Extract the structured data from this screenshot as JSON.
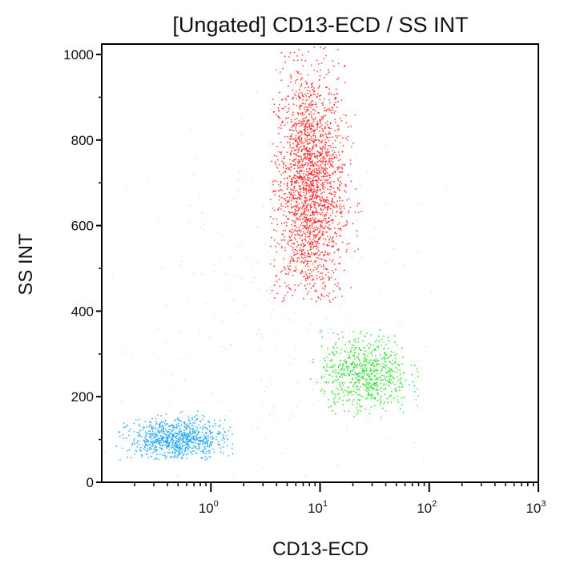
{
  "chart_data": {
    "type": "scatter",
    "title": "[Ungated] CD13-ECD / SS INT",
    "xlabel": "CD13-ECD",
    "ylabel": "SS INT",
    "x_scale": "log",
    "xlim": [
      0.1,
      1000
    ],
    "ylim": [
      0,
      1020
    ],
    "x_ticks": [
      {
        "value": 1,
        "base": "10",
        "exp": "0"
      },
      {
        "value": 10,
        "base": "10",
        "exp": "1"
      },
      {
        "value": 100,
        "base": "10",
        "exp": "2"
      },
      {
        "value": 1000,
        "base": "10",
        "exp": "3"
      }
    ],
    "y_ticks": [
      {
        "value": 0,
        "label": "0"
      },
      {
        "value": 200,
        "label": "200"
      },
      {
        "value": 400,
        "label": "400"
      },
      {
        "value": 600,
        "label": "600"
      },
      {
        "value": 800,
        "label": "800"
      },
      {
        "value": 1000,
        "label": "1000"
      }
    ],
    "grid": false,
    "populations": [
      {
        "color": "#ff1f1f",
        "count": 2200,
        "x_geo_center": 8,
        "x_log_sd": 0.16,
        "x_range": [
          3.5,
          25
        ],
        "y_center": 690,
        "y_sd": 140,
        "y_range": [
          420,
          1020
        ]
      },
      {
        "color": "#22dd22",
        "count": 700,
        "x_geo_center": 26,
        "x_log_sd": 0.2,
        "x_range": [
          8,
          80
        ],
        "y_center": 255,
        "y_sd": 45,
        "y_range": [
          150,
          360
        ]
      },
      {
        "color": "#1ba6ef",
        "count": 900,
        "x_geo_center": 0.5,
        "x_log_sd": 0.22,
        "x_range": [
          0.13,
          1.6
        ],
        "y_center": 100,
        "y_sd": 24,
        "y_range": [
          50,
          170
        ]
      },
      {
        "color": "#9aa8b8",
        "count": 250,
        "x_geo_center": 3,
        "x_log_sd": 0.7,
        "x_range": [
          0.1,
          300
        ],
        "y_center": 350,
        "y_sd": 250,
        "y_range": [
          0,
          1000
        ]
      }
    ]
  }
}
